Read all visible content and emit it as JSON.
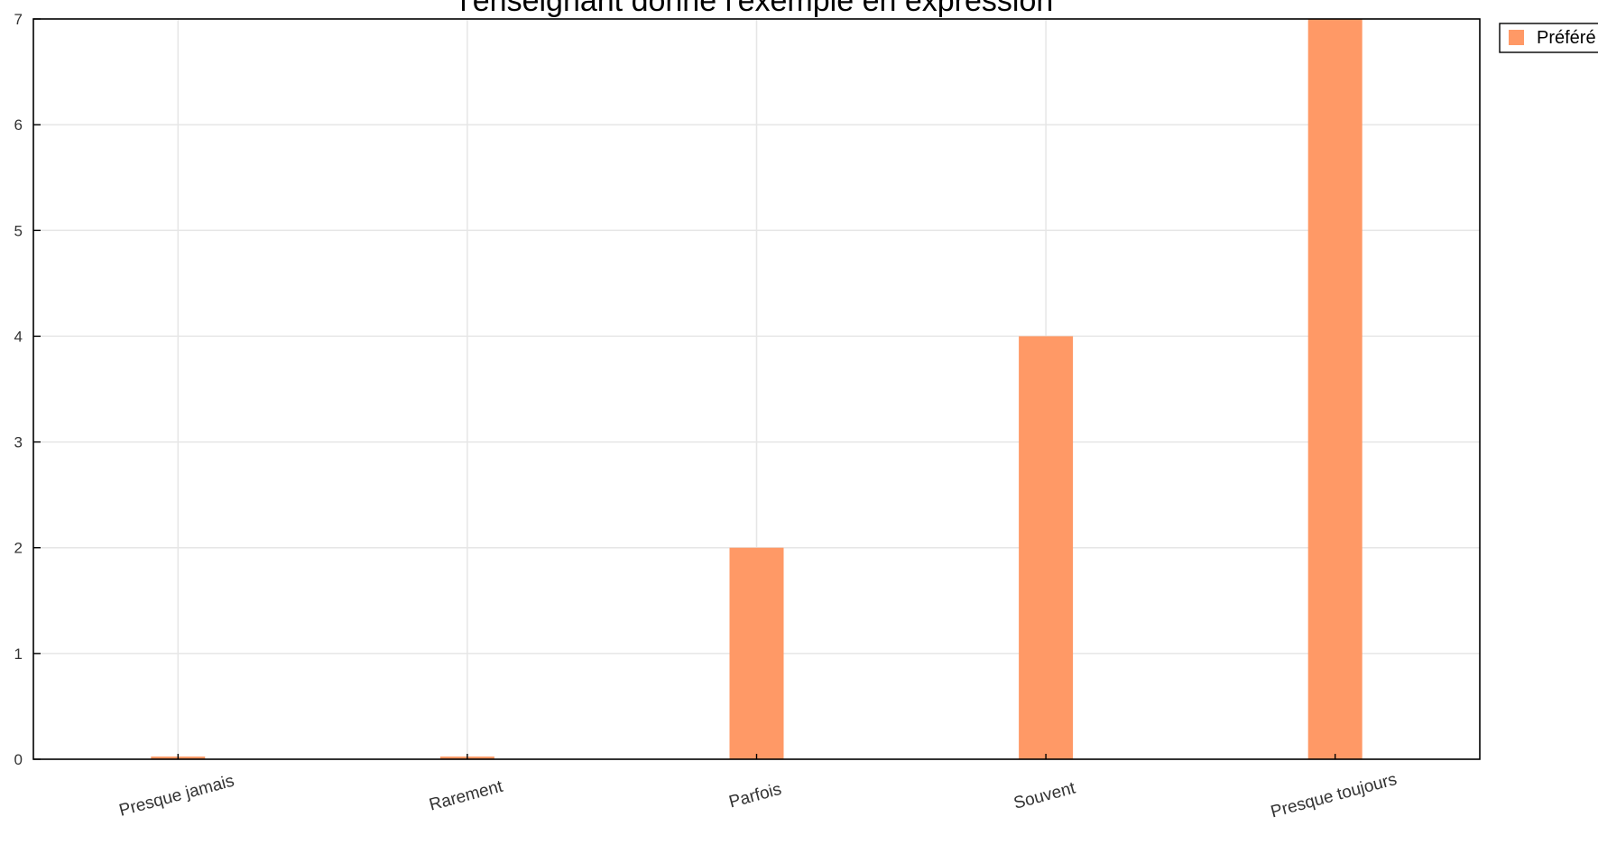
{
  "chart_data": {
    "type": "bar",
    "title": "l'enseignant donne l'exemple en expression",
    "xlabel": "",
    "ylabel": "",
    "categories": [
      "Presque jamais",
      "Rarement",
      "Parfois",
      "Souvent",
      "Presque toujours"
    ],
    "series": [
      {
        "name": "Préféré",
        "values": [
          0,
          0,
          2,
          4,
          7
        ],
        "color": "#ff9966"
      }
    ],
    "ylim": [
      0,
      7
    ],
    "yticks": [
      0,
      1,
      2,
      3,
      4,
      5,
      6,
      7
    ],
    "grid": true,
    "legend_position": "top-right"
  }
}
